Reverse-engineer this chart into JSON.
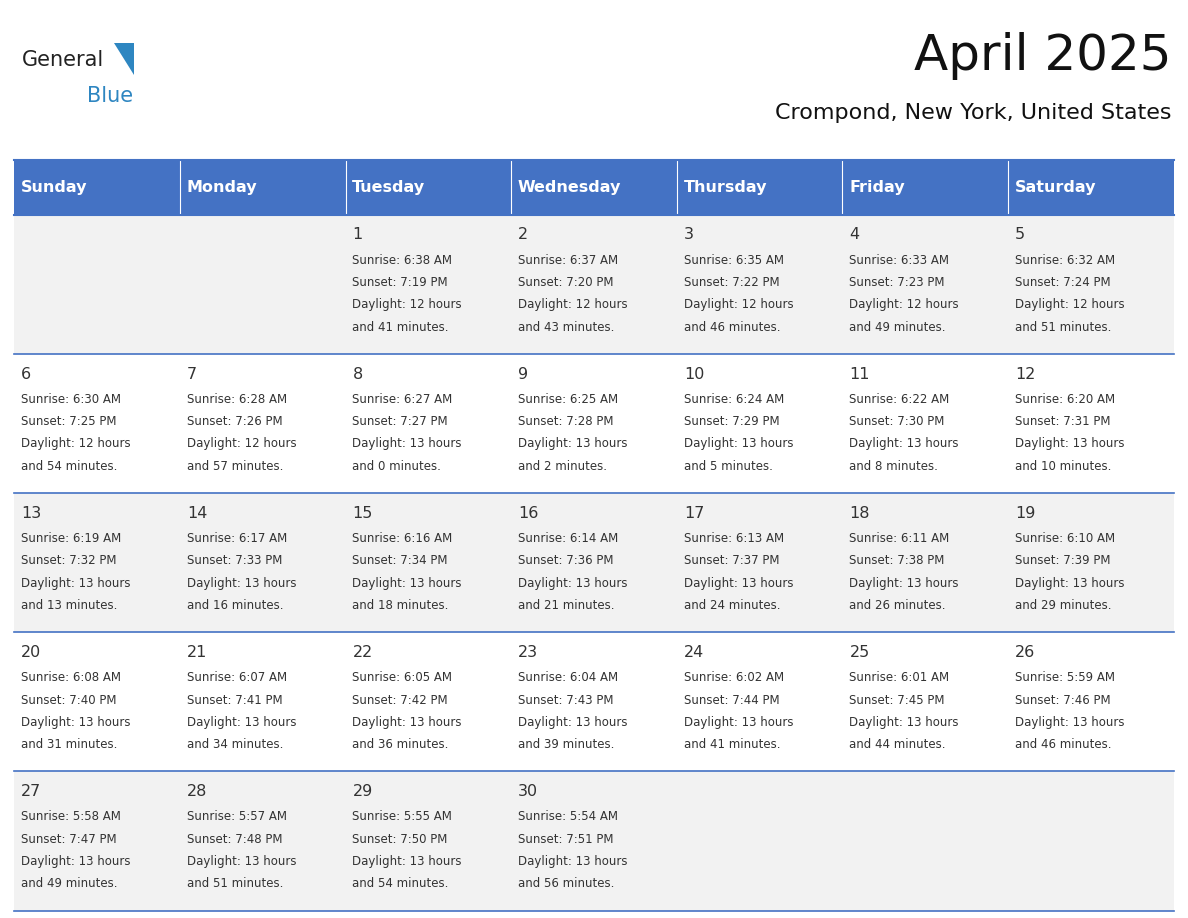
{
  "title": "April 2025",
  "subtitle": "Crompond, New York, United States",
  "header_color": "#4472C4",
  "header_text_color": "#FFFFFF",
  "row_bg_odd": "#F2F2F2",
  "row_bg_even": "#FFFFFF",
  "day_names": [
    "Sunday",
    "Monday",
    "Tuesday",
    "Wednesday",
    "Thursday",
    "Friday",
    "Saturday"
  ],
  "text_color": "#333333",
  "line_color": "#4472C4",
  "logo_general_color": "#222222",
  "logo_blue_color": "#2E86C1",
  "logo_triangle_color": "#2E86C1",
  "days": [
    {
      "day": 1,
      "col": 2,
      "row": 0,
      "sunrise": "6:38 AM",
      "sunset": "7:19 PM",
      "daylight_line1": "Daylight: 12 hours",
      "daylight_line2": "and 41 minutes."
    },
    {
      "day": 2,
      "col": 3,
      "row": 0,
      "sunrise": "6:37 AM",
      "sunset": "7:20 PM",
      "daylight_line1": "Daylight: 12 hours",
      "daylight_line2": "and 43 minutes."
    },
    {
      "day": 3,
      "col": 4,
      "row": 0,
      "sunrise": "6:35 AM",
      "sunset": "7:22 PM",
      "daylight_line1": "Daylight: 12 hours",
      "daylight_line2": "and 46 minutes."
    },
    {
      "day": 4,
      "col": 5,
      "row": 0,
      "sunrise": "6:33 AM",
      "sunset": "7:23 PM",
      "daylight_line1": "Daylight: 12 hours",
      "daylight_line2": "and 49 minutes."
    },
    {
      "day": 5,
      "col": 6,
      "row": 0,
      "sunrise": "6:32 AM",
      "sunset": "7:24 PM",
      "daylight_line1": "Daylight: 12 hours",
      "daylight_line2": "and 51 minutes."
    },
    {
      "day": 6,
      "col": 0,
      "row": 1,
      "sunrise": "6:30 AM",
      "sunset": "7:25 PM",
      "daylight_line1": "Daylight: 12 hours",
      "daylight_line2": "and 54 minutes."
    },
    {
      "day": 7,
      "col": 1,
      "row": 1,
      "sunrise": "6:28 AM",
      "sunset": "7:26 PM",
      "daylight_line1": "Daylight: 12 hours",
      "daylight_line2": "and 57 minutes."
    },
    {
      "day": 8,
      "col": 2,
      "row": 1,
      "sunrise": "6:27 AM",
      "sunset": "7:27 PM",
      "daylight_line1": "Daylight: 13 hours",
      "daylight_line2": "and 0 minutes."
    },
    {
      "day": 9,
      "col": 3,
      "row": 1,
      "sunrise": "6:25 AM",
      "sunset": "7:28 PM",
      "daylight_line1": "Daylight: 13 hours",
      "daylight_line2": "and 2 minutes."
    },
    {
      "day": 10,
      "col": 4,
      "row": 1,
      "sunrise": "6:24 AM",
      "sunset": "7:29 PM",
      "daylight_line1": "Daylight: 13 hours",
      "daylight_line2": "and 5 minutes."
    },
    {
      "day": 11,
      "col": 5,
      "row": 1,
      "sunrise": "6:22 AM",
      "sunset": "7:30 PM",
      "daylight_line1": "Daylight: 13 hours",
      "daylight_line2": "and 8 minutes."
    },
    {
      "day": 12,
      "col": 6,
      "row": 1,
      "sunrise": "6:20 AM",
      "sunset": "7:31 PM",
      "daylight_line1": "Daylight: 13 hours",
      "daylight_line2": "and 10 minutes."
    },
    {
      "day": 13,
      "col": 0,
      "row": 2,
      "sunrise": "6:19 AM",
      "sunset": "7:32 PM",
      "daylight_line1": "Daylight: 13 hours",
      "daylight_line2": "and 13 minutes."
    },
    {
      "day": 14,
      "col": 1,
      "row": 2,
      "sunrise": "6:17 AM",
      "sunset": "7:33 PM",
      "daylight_line1": "Daylight: 13 hours",
      "daylight_line2": "and 16 minutes."
    },
    {
      "day": 15,
      "col": 2,
      "row": 2,
      "sunrise": "6:16 AM",
      "sunset": "7:34 PM",
      "daylight_line1": "Daylight: 13 hours",
      "daylight_line2": "and 18 minutes."
    },
    {
      "day": 16,
      "col": 3,
      "row": 2,
      "sunrise": "6:14 AM",
      "sunset": "7:36 PM",
      "daylight_line1": "Daylight: 13 hours",
      "daylight_line2": "and 21 minutes."
    },
    {
      "day": 17,
      "col": 4,
      "row": 2,
      "sunrise": "6:13 AM",
      "sunset": "7:37 PM",
      "daylight_line1": "Daylight: 13 hours",
      "daylight_line2": "and 24 minutes."
    },
    {
      "day": 18,
      "col": 5,
      "row": 2,
      "sunrise": "6:11 AM",
      "sunset": "7:38 PM",
      "daylight_line1": "Daylight: 13 hours",
      "daylight_line2": "and 26 minutes."
    },
    {
      "day": 19,
      "col": 6,
      "row": 2,
      "sunrise": "6:10 AM",
      "sunset": "7:39 PM",
      "daylight_line1": "Daylight: 13 hours",
      "daylight_line2": "and 29 minutes."
    },
    {
      "day": 20,
      "col": 0,
      "row": 3,
      "sunrise": "6:08 AM",
      "sunset": "7:40 PM",
      "daylight_line1": "Daylight: 13 hours",
      "daylight_line2": "and 31 minutes."
    },
    {
      "day": 21,
      "col": 1,
      "row": 3,
      "sunrise": "6:07 AM",
      "sunset": "7:41 PM",
      "daylight_line1": "Daylight: 13 hours",
      "daylight_line2": "and 34 minutes."
    },
    {
      "day": 22,
      "col": 2,
      "row": 3,
      "sunrise": "6:05 AM",
      "sunset": "7:42 PM",
      "daylight_line1": "Daylight: 13 hours",
      "daylight_line2": "and 36 minutes."
    },
    {
      "day": 23,
      "col": 3,
      "row": 3,
      "sunrise": "6:04 AM",
      "sunset": "7:43 PM",
      "daylight_line1": "Daylight: 13 hours",
      "daylight_line2": "and 39 minutes."
    },
    {
      "day": 24,
      "col": 4,
      "row": 3,
      "sunrise": "6:02 AM",
      "sunset": "7:44 PM",
      "daylight_line1": "Daylight: 13 hours",
      "daylight_line2": "and 41 minutes."
    },
    {
      "day": 25,
      "col": 5,
      "row": 3,
      "sunrise": "6:01 AM",
      "sunset": "7:45 PM",
      "daylight_line1": "Daylight: 13 hours",
      "daylight_line2": "and 44 minutes."
    },
    {
      "day": 26,
      "col": 6,
      "row": 3,
      "sunrise": "5:59 AM",
      "sunset": "7:46 PM",
      "daylight_line1": "Daylight: 13 hours",
      "daylight_line2": "and 46 minutes."
    },
    {
      "day": 27,
      "col": 0,
      "row": 4,
      "sunrise": "5:58 AM",
      "sunset": "7:47 PM",
      "daylight_line1": "Daylight: 13 hours",
      "daylight_line2": "and 49 minutes."
    },
    {
      "day": 28,
      "col": 1,
      "row": 4,
      "sunrise": "5:57 AM",
      "sunset": "7:48 PM",
      "daylight_line1": "Daylight: 13 hours",
      "daylight_line2": "and 51 minutes."
    },
    {
      "day": 29,
      "col": 2,
      "row": 4,
      "sunrise": "5:55 AM",
      "sunset": "7:50 PM",
      "daylight_line1": "Daylight: 13 hours",
      "daylight_line2": "and 54 minutes."
    },
    {
      "day": 30,
      "col": 3,
      "row": 4,
      "sunrise": "5:54 AM",
      "sunset": "7:51 PM",
      "daylight_line1": "Daylight: 13 hours",
      "daylight_line2": "and 56 minutes."
    }
  ]
}
